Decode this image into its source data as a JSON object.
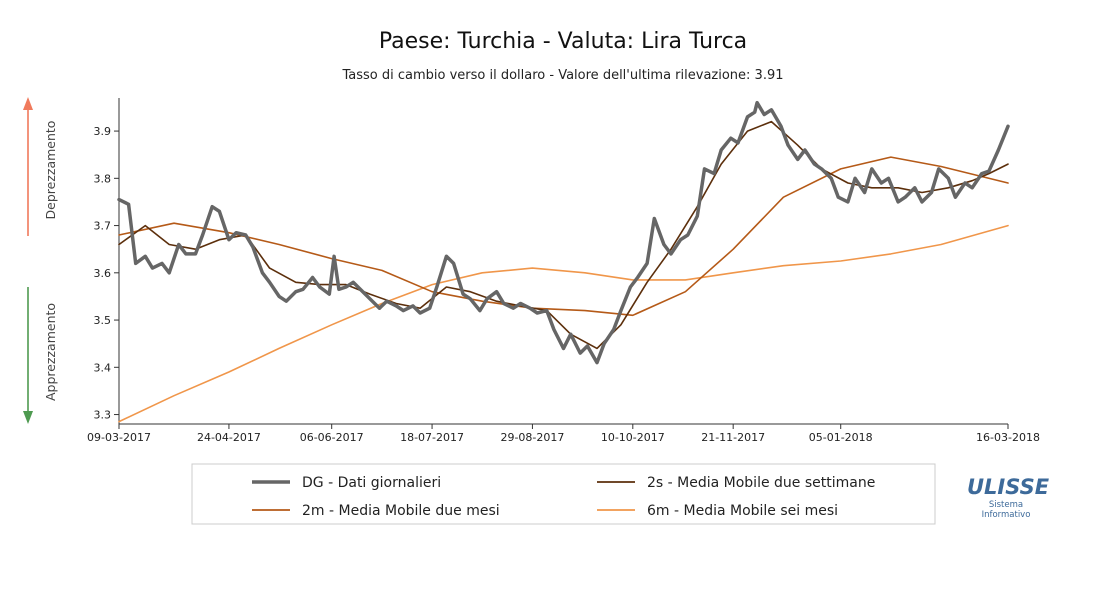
{
  "chart_data": {
    "type": "line",
    "title": "Paese: Turchia - Valuta: Lira Turca",
    "subtitle": "Tasso di cambio verso il dollaro - Valore dell'ultima rilevazione: 3.91",
    "xlabel": "",
    "ylabel": "",
    "x_ticks": [
      "09-03-2017",
      "24-04-2017",
      "06-06-2017",
      "18-07-2017",
      "29-08-2017",
      "10-10-2017",
      "21-11-2017",
      "05-01-2018",
      "16-03-2018"
    ],
    "x_range": [
      "2017-03-09",
      "2018-03-16"
    ],
    "y_ticks": [
      3.3,
      3.4,
      3.5,
      3.6,
      3.7,
      3.8,
      3.9
    ],
    "ylim": [
      3.28,
      3.97
    ],
    "grid": false,
    "legend_position": "bottom",
    "up_label": "Deprezzamento",
    "down_label": "Apprezzamento",
    "series": [
      {
        "key": "DG",
        "name": "DG - Dati giornalieri",
        "color": "#666666",
        "points": [
          [
            "2017-03-09",
            3.755
          ],
          [
            "2017-03-13",
            3.745
          ],
          [
            "2017-03-16",
            3.62
          ],
          [
            "2017-03-20",
            3.635
          ],
          [
            "2017-03-23",
            3.61
          ],
          [
            "2017-03-27",
            3.62
          ],
          [
            "2017-03-30",
            3.6
          ],
          [
            "2017-04-03",
            3.66
          ],
          [
            "2017-04-06",
            3.64
          ],
          [
            "2017-04-10",
            3.64
          ],
          [
            "2017-04-13",
            3.68
          ],
          [
            "2017-04-17",
            3.74
          ],
          [
            "2017-04-20",
            3.73
          ],
          [
            "2017-04-24",
            3.67
          ],
          [
            "2017-04-27",
            3.685
          ],
          [
            "2017-05-01",
            3.68
          ],
          [
            "2017-05-04",
            3.655
          ],
          [
            "2017-05-08",
            3.6
          ],
          [
            "2017-05-11",
            3.58
          ],
          [
            "2017-05-15",
            3.55
          ],
          [
            "2017-05-18",
            3.54
          ],
          [
            "2017-05-22",
            3.56
          ],
          [
            "2017-05-25",
            3.565
          ],
          [
            "2017-05-29",
            3.59
          ],
          [
            "2017-06-01",
            3.57
          ],
          [
            "2017-06-05",
            3.555
          ],
          [
            "2017-06-07",
            3.635
          ],
          [
            "2017-06-09",
            3.565
          ],
          [
            "2017-06-12",
            3.57
          ],
          [
            "2017-06-15",
            3.58
          ],
          [
            "2017-06-19",
            3.56
          ],
          [
            "2017-06-22",
            3.545
          ],
          [
            "2017-06-26",
            3.525
          ],
          [
            "2017-06-29",
            3.54
          ],
          [
            "2017-07-03",
            3.53
          ],
          [
            "2017-07-06",
            3.52
          ],
          [
            "2017-07-10",
            3.53
          ],
          [
            "2017-07-13",
            3.515
          ],
          [
            "2017-07-17",
            3.525
          ],
          [
            "2017-07-20",
            3.57
          ],
          [
            "2017-07-24",
            3.635
          ],
          [
            "2017-07-27",
            3.62
          ],
          [
            "2017-07-31",
            3.555
          ],
          [
            "2017-08-03",
            3.545
          ],
          [
            "2017-08-07",
            3.52
          ],
          [
            "2017-08-10",
            3.545
          ],
          [
            "2017-08-14",
            3.56
          ],
          [
            "2017-08-17",
            3.535
          ],
          [
            "2017-08-21",
            3.525
          ],
          [
            "2017-08-24",
            3.535
          ],
          [
            "2017-08-28",
            3.525
          ],
          [
            "2017-08-31",
            3.515
          ],
          [
            "2017-09-04",
            3.52
          ],
          [
            "2017-09-07",
            3.48
          ],
          [
            "2017-09-11",
            3.44
          ],
          [
            "2017-09-14",
            3.47
          ],
          [
            "2017-09-18",
            3.43
          ],
          [
            "2017-09-21",
            3.445
          ],
          [
            "2017-09-25",
            3.41
          ],
          [
            "2017-09-28",
            3.45
          ],
          [
            "2017-10-02",
            3.48
          ],
          [
            "2017-10-05",
            3.52
          ],
          [
            "2017-10-09",
            3.57
          ],
          [
            "2017-10-12",
            3.59
          ],
          [
            "2017-10-16",
            3.62
          ],
          [
            "2017-10-19",
            3.715
          ],
          [
            "2017-10-23",
            3.66
          ],
          [
            "2017-10-26",
            3.64
          ],
          [
            "2017-10-30",
            3.67
          ],
          [
            "2017-11-02",
            3.68
          ],
          [
            "2017-11-06",
            3.72
          ],
          [
            "2017-11-09",
            3.82
          ],
          [
            "2017-11-13",
            3.81
          ],
          [
            "2017-11-16",
            3.86
          ],
          [
            "2017-11-20",
            3.885
          ],
          [
            "2017-11-23",
            3.875
          ],
          [
            "2017-11-27",
            3.93
          ],
          [
            "2017-11-30",
            3.94
          ],
          [
            "2017-12-01",
            3.96
          ],
          [
            "2017-12-04",
            3.935
          ],
          [
            "2017-12-07",
            3.945
          ],
          [
            "2017-12-11",
            3.91
          ],
          [
            "2017-12-14",
            3.87
          ],
          [
            "2017-12-18",
            3.84
          ],
          [
            "2017-12-21",
            3.86
          ],
          [
            "2017-12-25",
            3.83
          ],
          [
            "2017-12-28",
            3.82
          ],
          [
            "2018-01-01",
            3.8
          ],
          [
            "2018-01-04",
            3.76
          ],
          [
            "2018-01-08",
            3.75
          ],
          [
            "2018-01-11",
            3.8
          ],
          [
            "2018-01-15",
            3.77
          ],
          [
            "2018-01-18",
            3.82
          ],
          [
            "2018-01-22",
            3.79
          ],
          [
            "2018-01-25",
            3.8
          ],
          [
            "2018-01-29",
            3.75
          ],
          [
            "2018-02-01",
            3.76
          ],
          [
            "2018-02-05",
            3.78
          ],
          [
            "2018-02-08",
            3.75
          ],
          [
            "2018-02-12",
            3.77
          ],
          [
            "2018-02-15",
            3.82
          ],
          [
            "2018-02-19",
            3.8
          ],
          [
            "2018-02-22",
            3.76
          ],
          [
            "2018-02-26",
            3.79
          ],
          [
            "2018-03-01",
            3.78
          ],
          [
            "2018-03-05",
            3.81
          ],
          [
            "2018-03-08",
            3.815
          ],
          [
            "2018-03-12",
            3.86
          ],
          [
            "2018-03-16",
            3.91
          ]
        ]
      },
      {
        "key": "2s",
        "name": "2s - Media Mobile due settimane",
        "color": "#5c2f0c",
        "points": [
          [
            "2017-03-09",
            3.66
          ],
          [
            "2017-03-20",
            3.7
          ],
          [
            "2017-03-30",
            3.66
          ],
          [
            "2017-04-10",
            3.65
          ],
          [
            "2017-04-20",
            3.67
          ],
          [
            "2017-05-01",
            3.68
          ],
          [
            "2017-05-11",
            3.61
          ],
          [
            "2017-05-22",
            3.58
          ],
          [
            "2017-06-01",
            3.575
          ],
          [
            "2017-06-12",
            3.575
          ],
          [
            "2017-06-22",
            3.555
          ],
          [
            "2017-07-03",
            3.535
          ],
          [
            "2017-07-13",
            3.525
          ],
          [
            "2017-07-24",
            3.57
          ],
          [
            "2017-08-03",
            3.56
          ],
          [
            "2017-08-14",
            3.54
          ],
          [
            "2017-08-24",
            3.53
          ],
          [
            "2017-09-04",
            3.52
          ],
          [
            "2017-09-14",
            3.47
          ],
          [
            "2017-09-25",
            3.44
          ],
          [
            "2017-10-05",
            3.49
          ],
          [
            "2017-10-16",
            3.58
          ],
          [
            "2017-10-26",
            3.65
          ],
          [
            "2017-11-06",
            3.74
          ],
          [
            "2017-11-16",
            3.83
          ],
          [
            "2017-11-27",
            3.9
          ],
          [
            "2017-12-07",
            3.92
          ],
          [
            "2017-12-18",
            3.87
          ],
          [
            "2017-12-28",
            3.82
          ],
          [
            "2018-01-08",
            3.79
          ],
          [
            "2018-01-18",
            3.78
          ],
          [
            "2018-01-29",
            3.78
          ],
          [
            "2018-02-08",
            3.77
          ],
          [
            "2018-02-19",
            3.78
          ],
          [
            "2018-03-01",
            3.795
          ],
          [
            "2018-03-08",
            3.81
          ],
          [
            "2018-03-16",
            3.83
          ]
        ]
      },
      {
        "key": "2m",
        "name": "2m - Media Mobile due mesi",
        "color": "#b55a18",
        "points": [
          [
            "2017-03-09",
            3.68
          ],
          [
            "2017-04-01",
            3.705
          ],
          [
            "2017-04-24",
            3.685
          ],
          [
            "2017-05-15",
            3.66
          ],
          [
            "2017-06-06",
            3.63
          ],
          [
            "2017-06-27",
            3.605
          ],
          [
            "2017-07-18",
            3.56
          ],
          [
            "2017-08-08",
            3.54
          ],
          [
            "2017-08-29",
            3.525
          ],
          [
            "2017-09-20",
            3.52
          ],
          [
            "2017-10-10",
            3.51
          ],
          [
            "2017-11-01",
            3.56
          ],
          [
            "2017-11-21",
            3.65
          ],
          [
            "2017-12-12",
            3.76
          ],
          [
            "2018-01-05",
            3.82
          ],
          [
            "2018-01-26",
            3.845
          ],
          [
            "2018-02-16",
            3.825
          ],
          [
            "2018-03-16",
            3.79
          ]
        ]
      },
      {
        "key": "6m",
        "name": "6m - Media Mobile sei mesi",
        "color": "#f0964a",
        "points": [
          [
            "2017-03-09",
            3.285
          ],
          [
            "2017-04-01",
            3.34
          ],
          [
            "2017-04-24",
            3.39
          ],
          [
            "2017-05-15",
            3.44
          ],
          [
            "2017-06-06",
            3.49
          ],
          [
            "2017-06-27",
            3.535
          ],
          [
            "2017-07-18",
            3.575
          ],
          [
            "2017-08-08",
            3.6
          ],
          [
            "2017-08-29",
            3.61
          ],
          [
            "2017-09-20",
            3.6
          ],
          [
            "2017-10-10",
            3.585
          ],
          [
            "2017-11-01",
            3.585
          ],
          [
            "2017-11-21",
            3.6
          ],
          [
            "2017-12-12",
            3.615
          ],
          [
            "2018-01-05",
            3.625
          ],
          [
            "2018-01-26",
            3.64
          ],
          [
            "2018-02-16",
            3.66
          ],
          [
            "2018-03-16",
            3.7
          ]
        ]
      }
    ]
  },
  "logo": {
    "name": "ULISSE",
    "line1": "Sistema",
    "line2": "Informativo"
  }
}
